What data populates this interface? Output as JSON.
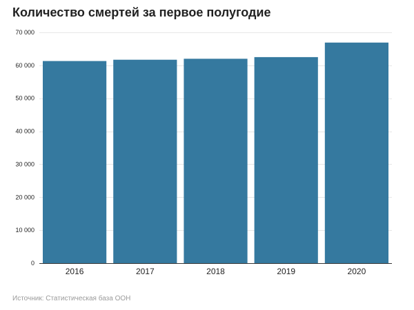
{
  "chart_data": {
    "type": "bar",
    "title": "Количество смертей за первое полугодие",
    "xlabel": "",
    "ylabel": "",
    "categories": [
      "2016",
      "2017",
      "2018",
      "2019",
      "2020"
    ],
    "values": [
      61300,
      61700,
      62000,
      62500,
      66900
    ],
    "ylim": [
      0,
      70000
    ],
    "yticks": [
      0,
      10000,
      20000,
      30000,
      40000,
      50000,
      60000,
      70000
    ],
    "ytick_labels": [
      "0",
      "10 000",
      "20 000",
      "30 000",
      "40 000",
      "50 000",
      "60 000",
      "70 000"
    ],
    "grid": true,
    "legend": "none",
    "colors": {
      "bar": "#35799f",
      "grid": "#e6e6e6",
      "axis": "#333333"
    },
    "source": "Источник: Статистическая база ООН"
  }
}
